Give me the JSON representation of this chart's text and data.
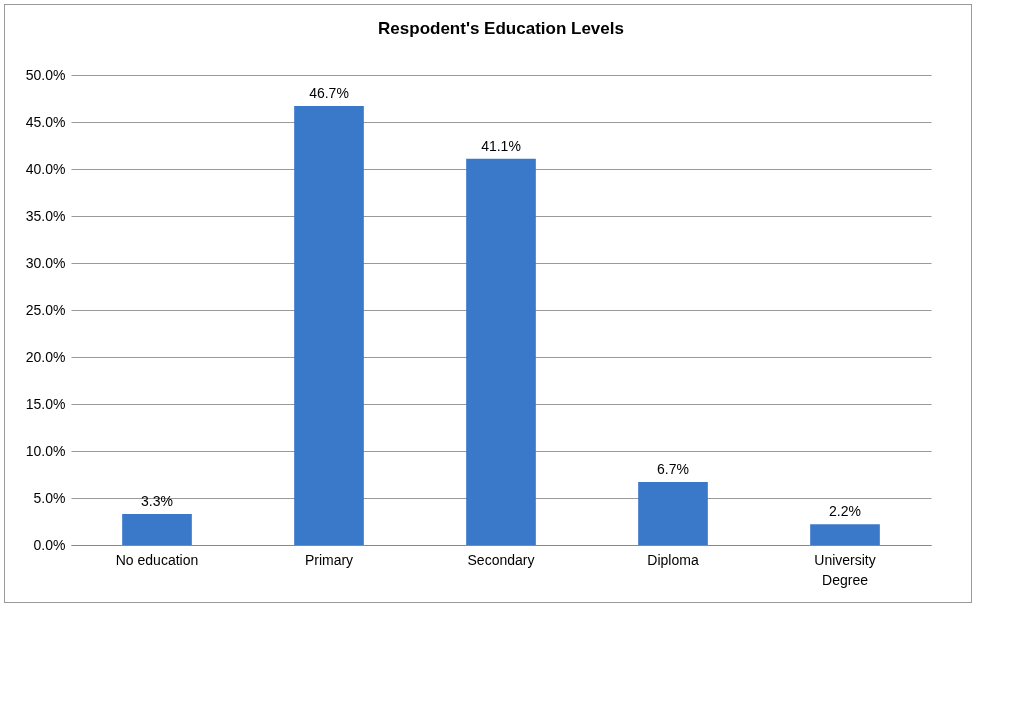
{
  "chart_data": {
    "type": "bar",
    "title": "Respodent's Education Levels",
    "categories": [
      "No education",
      "Primary",
      "Secondary",
      "Diploma",
      "University Degree"
    ],
    "values": [
      3.3,
      46.7,
      41.1,
      6.7,
      2.2
    ],
    "value_labels": [
      "3.3%",
      "46.7%",
      "41.1%",
      "6.7%",
      "2.2%"
    ],
    "color": "#3a78c9",
    "ylim": [
      0,
      50
    ],
    "yticks": [
      {
        "value": 0,
        "label": "0.0%"
      },
      {
        "value": 5,
        "label": "5.0%"
      },
      {
        "value": 10,
        "label": "10.0%"
      },
      {
        "value": 15,
        "label": "15.0%"
      },
      {
        "value": 20,
        "label": "20.0%"
      },
      {
        "value": 25,
        "label": "25.0%"
      },
      {
        "value": 30,
        "label": "30.0%"
      },
      {
        "value": 35,
        "label": "35.0%"
      },
      {
        "value": 40,
        "label": "40.0%"
      },
      {
        "value": 45,
        "label": "45.0%"
      },
      {
        "value": 50,
        "label": "50.0%"
      }
    ],
    "grid": true
  }
}
